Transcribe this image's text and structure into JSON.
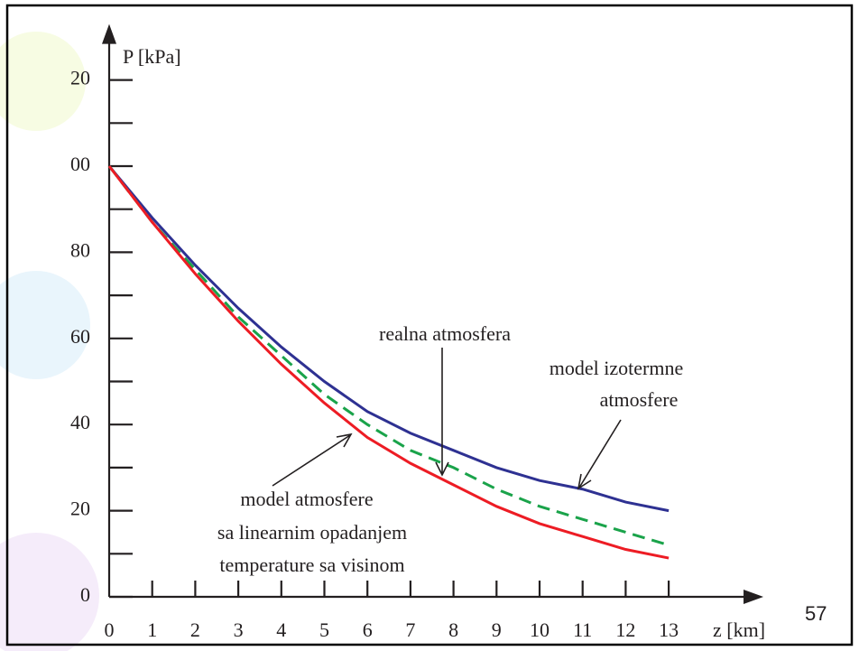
{
  "chart_data": {
    "type": "line",
    "y_label": "P [kPa]",
    "x_label": "z [km]",
    "x": [
      0,
      1,
      2,
      3,
      4,
      5,
      6,
      7,
      8,
      9,
      10,
      11,
      12,
      13
    ],
    "series": [
      {
        "name": "model izotermne atmosfere",
        "color": "#2e3192",
        "dash": false,
        "values": [
          100,
          88,
          77,
          67,
          58,
          50,
          43,
          38,
          34,
          30,
          27,
          25,
          22,
          20
        ]
      },
      {
        "name": "realna atmosfera",
        "color": "#1aa34a",
        "dash": true,
        "values": [
          100,
          87,
          76,
          65,
          56,
          47,
          40,
          34,
          30,
          25,
          21,
          18,
          15,
          12
        ]
      },
      {
        "name": "model atmosfere sa linearnim opadanjem temperature sa visinom",
        "color": "#ed1c24",
        "dash": false,
        "values": [
          100,
          87,
          75,
          64,
          54,
          45,
          37,
          31,
          26,
          21,
          17,
          14,
          11,
          9
        ]
      }
    ],
    "annotations": [
      {
        "lines": [
          "realna atmosfera"
        ]
      },
      {
        "lines": [
          "model izotermne",
          "atmosfere"
        ]
      },
      {
        "lines": [
          "model atmosfere",
          "sa linearnim opadanjem",
          "temperature sa visinom"
        ]
      }
    ],
    "xlim": [
      0,
      15.2
    ],
    "ylim": [
      0,
      133
    ],
    "xticks": [
      0,
      1,
      2,
      3,
      4,
      5,
      6,
      7,
      8,
      9,
      10,
      11,
      12,
      13
    ],
    "yticks": [
      0,
      20,
      40,
      60,
      80,
      {
        "value": 100,
        "label": "00"
      },
      {
        "value": 120,
        "label": "20"
      }
    ],
    "yminorticks": [
      10,
      30,
      50,
      70,
      90,
      110
    ],
    "page_number": "57"
  }
}
